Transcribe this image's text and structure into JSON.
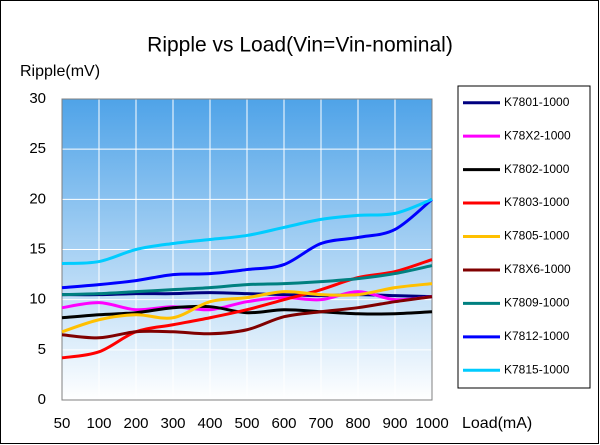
{
  "chart_data": {
    "type": "line",
    "title": "Ripple vs Load(Vin=Vin-nominal)",
    "y_label": "Ripple(mV)",
    "x_label": "Load(mA)",
    "categories": [
      "50",
      "100",
      "200",
      "300",
      "400",
      "500",
      "600",
      "700",
      "800",
      "900",
      "1000"
    ],
    "ylim": [
      0,
      30
    ],
    "yticks": [
      0,
      5,
      10,
      15,
      20,
      25,
      30
    ],
    "grid": true,
    "legend": "right",
    "series": [
      {
        "name": "K7801-1000",
        "color": "#000080",
        "values": [
          10.5,
          10.5,
          10.6,
          10.6,
          10.7,
          10.6,
          10.5,
          10.4,
          10.5,
          10.4,
          10.3
        ]
      },
      {
        "name": "K78X2-1000",
        "color": "#ff00ff",
        "values": [
          9.2,
          9.7,
          9.0,
          9.3,
          9.0,
          9.8,
          10.2,
          10.0,
          10.8,
          10.0,
          10.3
        ]
      },
      {
        "name": "K7802-1000",
        "color": "#000000",
        "values": [
          8.2,
          8.5,
          8.7,
          9.2,
          9.3,
          8.7,
          9.0,
          8.8,
          8.6,
          8.6,
          8.8
        ]
      },
      {
        "name": "K7803-1000",
        "color": "#ff0000",
        "values": [
          4.2,
          4.8,
          6.8,
          7.5,
          8.2,
          9.0,
          10.0,
          11.0,
          12.2,
          12.8,
          14.0
        ]
      },
      {
        "name": "K7805-1000",
        "color": "#ffc000",
        "values": [
          6.8,
          8.0,
          8.5,
          8.2,
          9.8,
          10.2,
          10.8,
          10.5,
          10.5,
          11.2,
          11.6
        ]
      },
      {
        "name": "K78X6-1000",
        "color": "#800000",
        "values": [
          6.5,
          6.2,
          6.8,
          6.8,
          6.6,
          7.0,
          8.3,
          8.8,
          9.2,
          9.8,
          10.3
        ]
      },
      {
        "name": "K7809-1000",
        "color": "#008080",
        "values": [
          10.5,
          10.6,
          10.8,
          11.0,
          11.2,
          11.5,
          11.6,
          11.8,
          12.1,
          12.6,
          13.4
        ]
      },
      {
        "name": "K7812-1000",
        "color": "#0000ff",
        "values": [
          11.2,
          11.5,
          11.9,
          12.5,
          12.6,
          13.0,
          13.5,
          15.6,
          16.2,
          17.0,
          20.0
        ]
      },
      {
        "name": "K7815-1000",
        "color": "#00ccff",
        "values": [
          13.6,
          13.8,
          15.0,
          15.6,
          16.0,
          16.4,
          17.2,
          18.0,
          18.4,
          18.6,
          20.0
        ]
      }
    ]
  }
}
